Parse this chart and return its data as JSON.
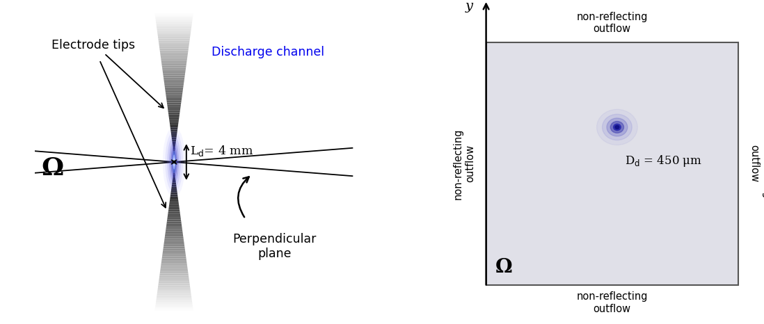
{
  "fig_width": 10.98,
  "fig_height": 4.66,
  "bg_color": "#ffffff",
  "left_panel": {
    "omega_label": "Ω",
    "electrode_tips_label": "Electrode tips",
    "discharge_channel_label": "Discharge channel",
    "discharge_channel_color": "#0000ee",
    "ld_label": "L$_\\mathrm{d}$= 4 mm",
    "perp_label": "Perpendicular\nplane"
  },
  "right_panel": {
    "box_color": "#e0e0e8",
    "box_edge_color": "#555555",
    "y_label": "y",
    "x_label": "X",
    "omega_label": "Ω",
    "dd_label": "D$_\\mathrm{d}$ = 450 μm",
    "top_label": "non-reflecting\noutflow",
    "bottom_label": "non-reflecting\noutflow",
    "left_label": "non-reflecting\noutflow",
    "right_label": "non-reflecting\noutflow"
  }
}
